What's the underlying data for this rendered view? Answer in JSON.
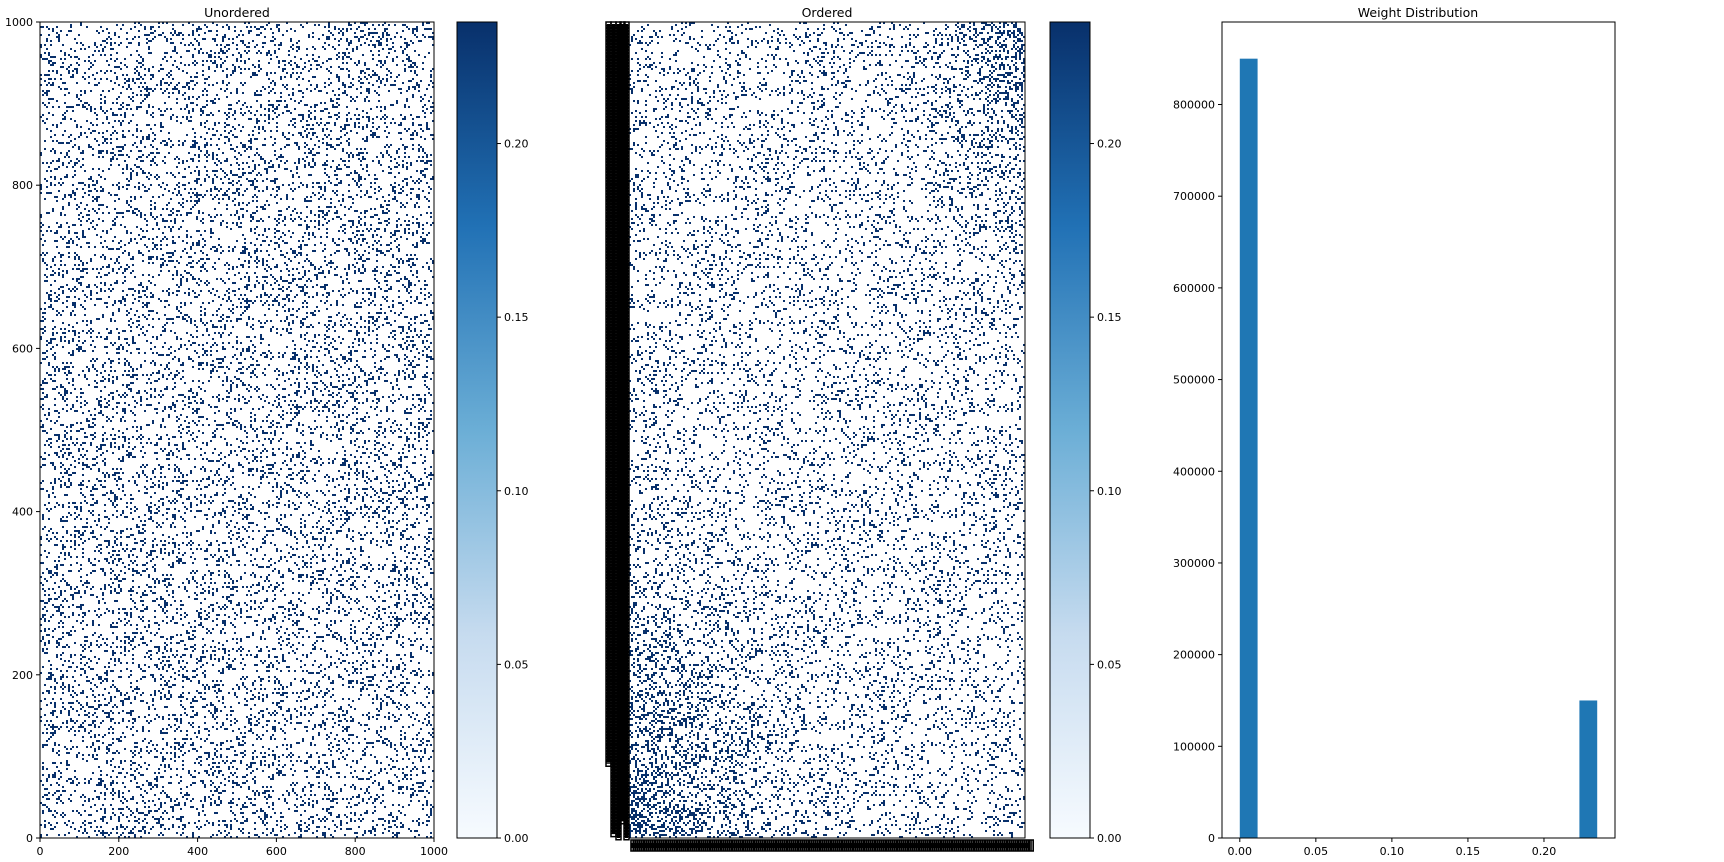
{
  "colors": {
    "cmap_low": "#f7fbff",
    "cmap_mid_light": "#c6dbef",
    "cmap_mid": "#6baed6",
    "cmap_mid_dark": "#2171b5",
    "cmap_high": "#08306b",
    "bar": "#1f77b4"
  },
  "chart_data": [
    {
      "type": "heatmap",
      "title": "Unordered",
      "colormap": "Blues",
      "xlim": [
        0,
        1000
      ],
      "ylim": [
        0,
        1000
      ],
      "x_ticks": [
        "0",
        "200",
        "400",
        "600",
        "800",
        "1000"
      ],
      "y_ticks": [
        "0",
        "200",
        "400",
        "600",
        "800",
        "1000"
      ],
      "value_range": [
        0,
        0.235
      ],
      "density": 0.15,
      "colorbar_ticks": [
        "0.00",
        "0.05",
        "0.10",
        "0.15",
        "0.20"
      ]
    },
    {
      "type": "heatmap",
      "title": "Ordered",
      "colormap": "Blues",
      "value_range": [
        0,
        0.235
      ],
      "density": 0.15,
      "colorbar_ticks": [
        "0.00",
        "0.05",
        "0.10",
        "0.15",
        "0.20"
      ],
      "tick_labels": "overlapping, illegible"
    },
    {
      "type": "bar",
      "title": "Weight Distribution",
      "bins": [
        {
          "left": 0.0,
          "right": 0.0117,
          "count": 850000
        },
        {
          "left": 0.2233,
          "right": 0.235,
          "count": 150000
        }
      ],
      "xlim": [
        -0.0117,
        0.2467
      ],
      "ylim": [
        0,
        890000
      ],
      "x_ticks": [
        "0.00",
        "0.05",
        "0.10",
        "0.15",
        "0.20"
      ],
      "y_ticks": [
        "0",
        "100000",
        "200000",
        "300000",
        "400000",
        "500000",
        "600000",
        "700000",
        "800000"
      ]
    }
  ]
}
